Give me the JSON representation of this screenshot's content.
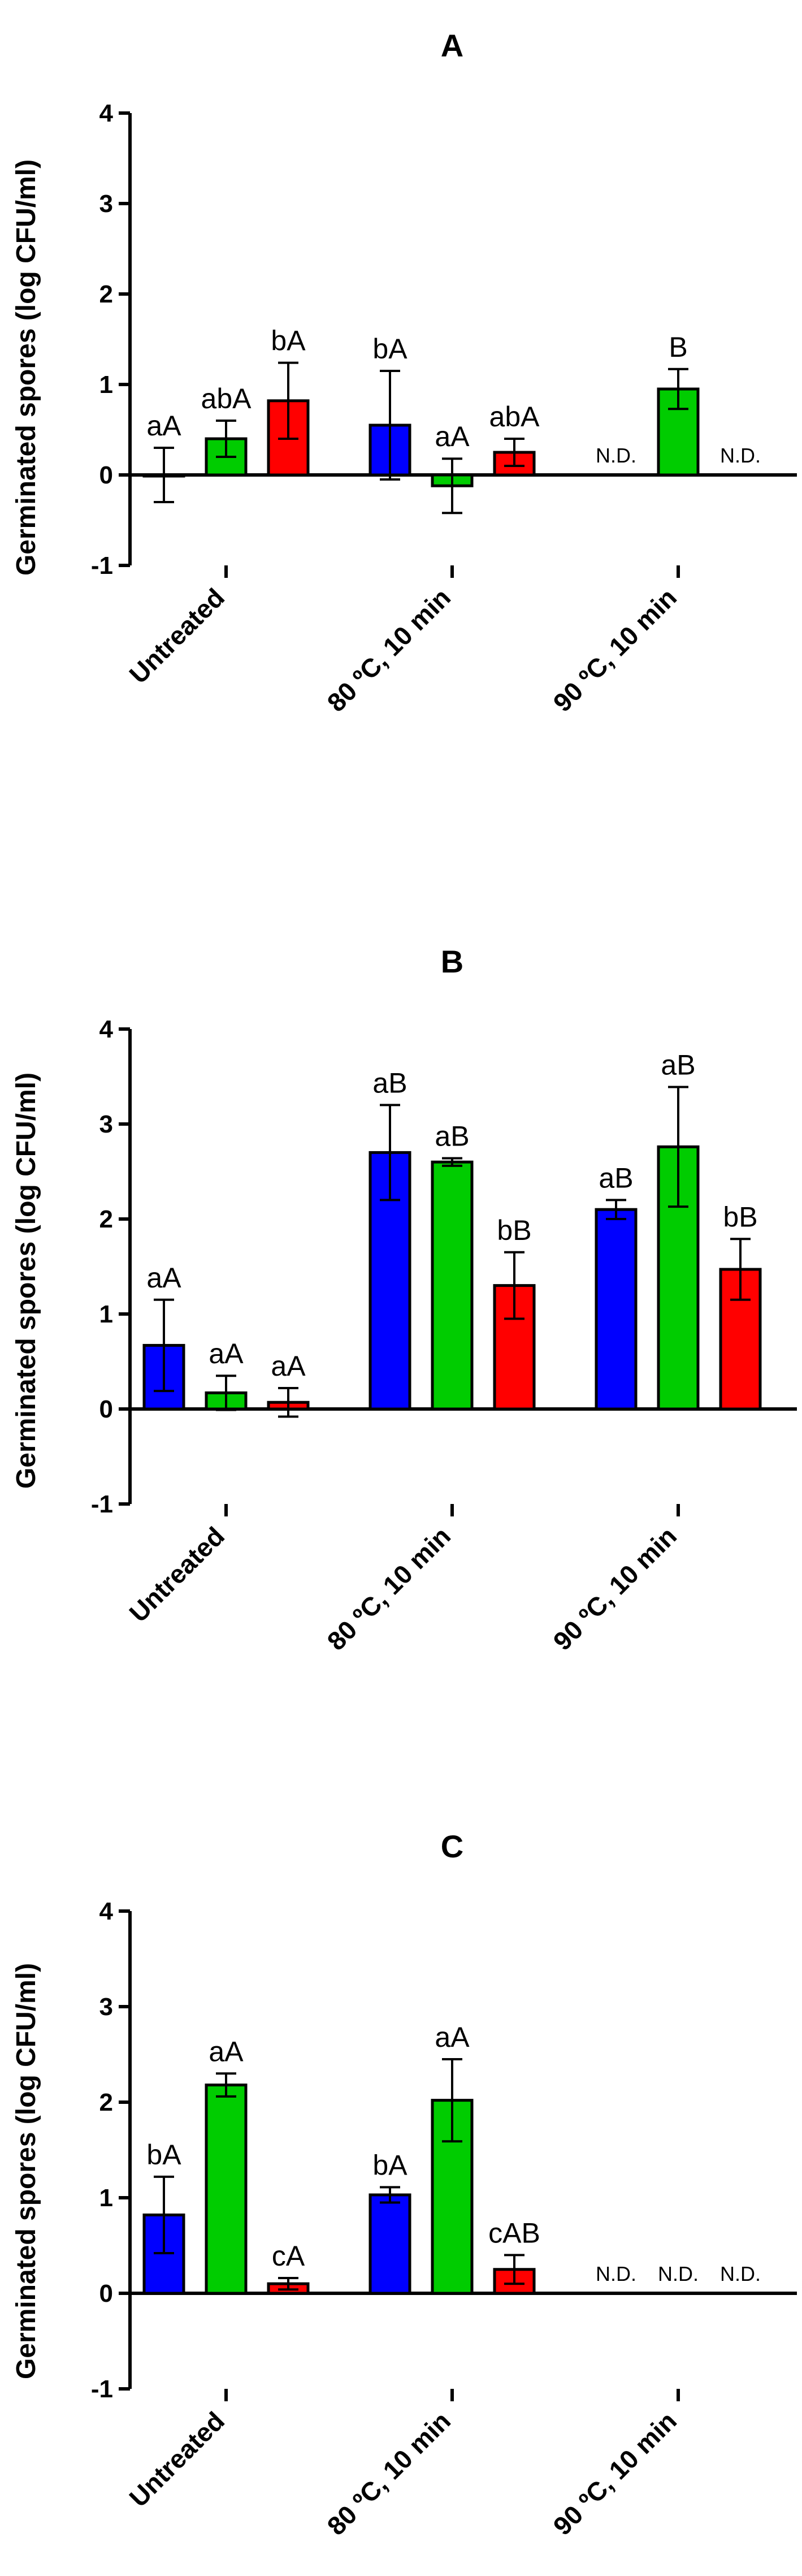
{
  "chart_data": [
    {
      "type": "bar",
      "title": "A",
      "ylabel": "Germinated spores (log CFU/ml)",
      "xlabel": "",
      "ylim": [
        -1,
        4
      ],
      "yticks": [
        "-1",
        "0",
        "1",
        "2",
        "3",
        "4"
      ],
      "categories": [
        "Untreated",
        "80 ºC, 10 min",
        "90 ºC, 10 min"
      ],
      "series": [
        {
          "name": "blue",
          "color": "#0000ff",
          "values": [
            0.0,
            0.55,
            null
          ],
          "errors": [
            0.3,
            0.6,
            null
          ],
          "labels": [
            "aA",
            "bA",
            "N.D."
          ]
        },
        {
          "name": "green",
          "color": "#00cc00",
          "values": [
            0.4,
            -0.12,
            0.95
          ],
          "errors": [
            0.2,
            0.3,
            0.22
          ],
          "labels": [
            "abA",
            "aA",
            "B"
          ]
        },
        {
          "name": "red",
          "color": "#ff0000",
          "values": [
            0.82,
            0.25,
            null
          ],
          "errors": [
            0.42,
            0.15,
            null
          ],
          "labels": [
            "bA",
            "abA",
            "N.D."
          ]
        }
      ]
    },
    {
      "type": "bar",
      "title": "B",
      "ylabel": "Germinated spores (log CFU/ml)",
      "xlabel": "",
      "ylim": [
        -1,
        4
      ],
      "yticks": [
        "-1",
        "0",
        "1",
        "2",
        "3",
        "4"
      ],
      "categories": [
        "Untreated",
        "80 ºC, 10 min",
        "90 ºC, 10 min"
      ],
      "series": [
        {
          "name": "blue",
          "color": "#0000ff",
          "values": [
            0.67,
            2.7,
            2.1
          ],
          "errors": [
            0.48,
            0.5,
            0.1
          ],
          "labels": [
            "aA",
            "aB",
            "aB"
          ]
        },
        {
          "name": "green",
          "color": "#00cc00",
          "values": [
            0.17,
            2.6,
            2.76
          ],
          "errors": [
            0.18,
            0.04,
            0.63
          ],
          "labels": [
            "aA",
            "aB",
            "aB"
          ]
        },
        {
          "name": "red",
          "color": "#ff0000",
          "values": [
            0.07,
            1.3,
            1.47
          ],
          "errors": [
            0.15,
            0.35,
            0.32
          ],
          "labels": [
            "aA",
            "bB",
            "bB"
          ]
        }
      ]
    },
    {
      "type": "bar",
      "title": "C",
      "ylabel": "Germinated spores (log CFU/ml)",
      "xlabel": "",
      "ylim": [
        -1,
        4
      ],
      "yticks": [
        "-1",
        "0",
        "1",
        "2",
        "3",
        "4"
      ],
      "categories": [
        "Untreated",
        "80 ºC, 10 min",
        "90 ºC, 10 min"
      ],
      "series": [
        {
          "name": "blue",
          "color": "#0000ff",
          "values": [
            0.82,
            1.03,
            null
          ],
          "errors": [
            0.4,
            0.08,
            null
          ],
          "labels": [
            "bA",
            "bA",
            "N.D."
          ]
        },
        {
          "name": "green",
          "color": "#00cc00",
          "values": [
            2.18,
            2.02,
            null
          ],
          "errors": [
            0.12,
            0.43,
            null
          ],
          "labels": [
            "aA",
            "aA",
            "N.D."
          ]
        },
        {
          "name": "red",
          "color": "#ff0000",
          "values": [
            0.1,
            0.25,
            null
          ],
          "errors": [
            0.06,
            0.15,
            null
          ],
          "labels": [
            "cA",
            "cAB",
            "N.D."
          ]
        }
      ]
    }
  ]
}
